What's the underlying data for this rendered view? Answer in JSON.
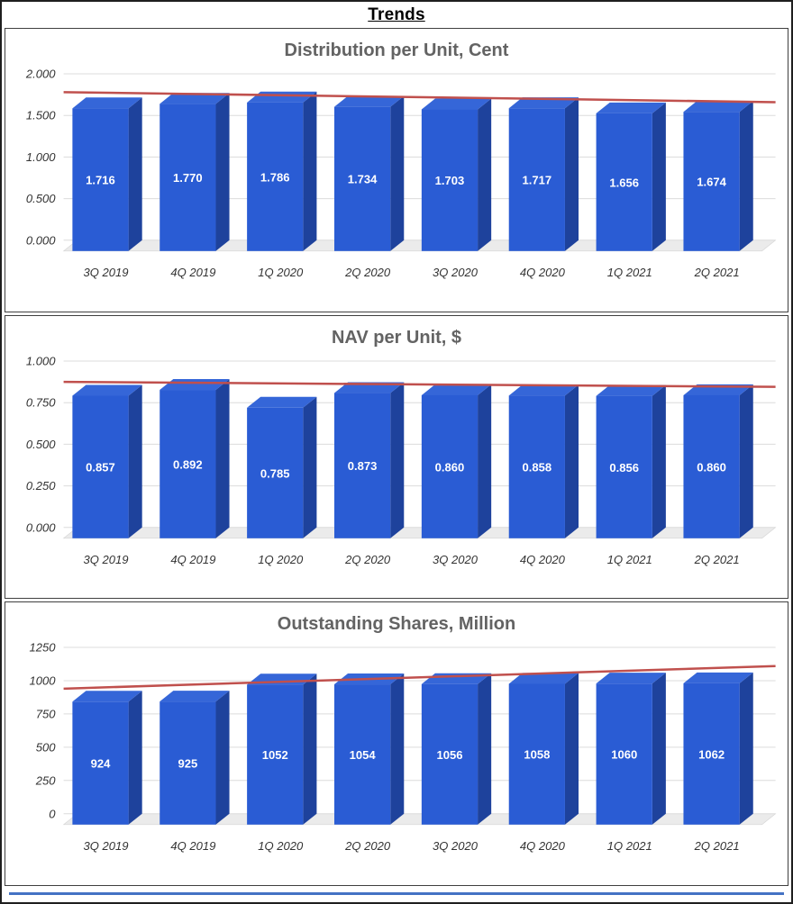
{
  "page": {
    "title": "Trends"
  },
  "colors": {
    "bar_front": "#2a5cd4",
    "bar_top": "#3566d8",
    "bar_side": "#1e429c",
    "trendline": "#c0504d",
    "gridline": "#dcdcdc",
    "axis_text": "#333333",
    "title_text": "#636363",
    "value_label": "#ffffff",
    "floor": "#ebebeb",
    "bottom_rule": "#4472c4"
  },
  "chart_data": [
    {
      "type": "bar",
      "style": "3d-column",
      "title": "Distribution per Unit, Cent",
      "categories": [
        "3Q 2019",
        "4Q 2019",
        "1Q 2020",
        "2Q 2020",
        "3Q 2020",
        "4Q 2020",
        "1Q 2021",
        "2Q 2021"
      ],
      "values": [
        1.716,
        1.77,
        1.786,
        1.734,
        1.703,
        1.717,
        1.656,
        1.674
      ],
      "value_labels": [
        "1.716",
        "1.770",
        "1.786",
        "1.734",
        "1.703",
        "1.717",
        "1.656",
        "1.674"
      ],
      "ylim": [
        0,
        2.0
      ],
      "yticks": [
        0,
        0.5,
        1.0,
        1.5,
        2.0
      ],
      "ytick_labels": [
        "0.000",
        "0.500",
        "1.000",
        "1.500",
        "2.000"
      ],
      "trendline": {
        "start": 1.78,
        "end": 1.66
      },
      "grid": true,
      "legend": "none"
    },
    {
      "type": "bar",
      "style": "3d-column",
      "title": "NAV per Unit, $",
      "categories": [
        "3Q 2019",
        "4Q 2019",
        "1Q 2020",
        "2Q 2020",
        "3Q 2020",
        "4Q 2020",
        "1Q 2021",
        "2Q 2021"
      ],
      "values": [
        0.857,
        0.892,
        0.785,
        0.873,
        0.86,
        0.858,
        0.856,
        0.86
      ],
      "value_labels": [
        "0.857",
        "0.892",
        "0.785",
        "0.873",
        "0.860",
        "0.858",
        "0.856",
        "0.860"
      ],
      "ylim": [
        0,
        1.0
      ],
      "yticks": [
        0,
        0.25,
        0.5,
        0.75,
        1.0
      ],
      "ytick_labels": [
        "0.000",
        "0.250",
        "0.500",
        "0.750",
        "1.000"
      ],
      "trendline": {
        "start": 0.875,
        "end": 0.845
      },
      "grid": true,
      "legend": "none"
    },
    {
      "type": "bar",
      "style": "3d-column",
      "title": "Outstanding Shares, Million",
      "categories": [
        "3Q 2019",
        "4Q 2019",
        "1Q 2020",
        "2Q 2020",
        "3Q 2020",
        "4Q 2020",
        "1Q 2021",
        "2Q 2021"
      ],
      "values": [
        924,
        925,
        1052,
        1054,
        1056,
        1058,
        1060,
        1062
      ],
      "value_labels": [
        "924",
        "925",
        "1052",
        "1054",
        "1056",
        "1058",
        "1060",
        "1062"
      ],
      "ylim": [
        0,
        1250
      ],
      "yticks": [
        0,
        250,
        500,
        750,
        1000,
        1250
      ],
      "ytick_labels": [
        "0",
        "250",
        "500",
        "750",
        "1000",
        "1250"
      ],
      "trendline": {
        "start": 940,
        "end": 1110
      },
      "grid": true,
      "legend": "none"
    }
  ]
}
